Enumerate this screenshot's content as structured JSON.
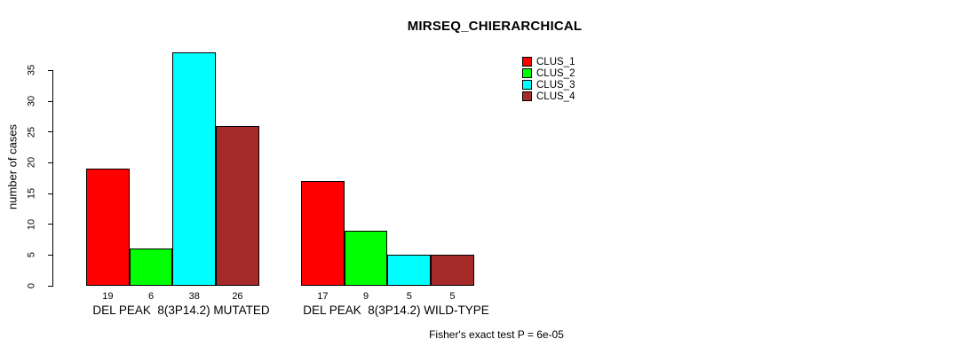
{
  "figure": {
    "background": "#ffffff",
    "title": "MIRSEQ_CHIERARCHICAL",
    "footnote": "Fisher's exact test P = 6e-05"
  },
  "chart_data": {
    "type": "bar",
    "title": "MIRSEQ_CHIERARCHICAL",
    "xlabel": "",
    "ylabel": "number of cases",
    "categories": [
      "DEL PEAK  8(3P14.2) MUTATED",
      "DEL PEAK  8(3P14.2) WILD-TYPE"
    ],
    "series": [
      {
        "name": "CLUS_1",
        "color": "#ff0000",
        "values": [
          19,
          17
        ]
      },
      {
        "name": "CLUS_2",
        "color": "#00ff00",
        "values": [
          6,
          9
        ]
      },
      {
        "name": "CLUS_3",
        "color": "#00ffff",
        "values": [
          38,
          5
        ]
      },
      {
        "name": "CLUS_4",
        "color": "#a52a2a",
        "values": [
          26,
          5
        ]
      }
    ],
    "yticks": [
      0,
      5,
      10,
      15,
      20,
      25,
      30,
      35
    ],
    "ylim": [
      0,
      38
    ],
    "grid": false,
    "values_shown_under_bars": true,
    "bar_border_color": "#000000",
    "legend_position": "top-right",
    "legend_entries": [
      "CLUS_1",
      "CLUS_2",
      "CLUS_3",
      "CLUS_4"
    ],
    "annotation": "Fisher's exact test P = 6e-05"
  }
}
